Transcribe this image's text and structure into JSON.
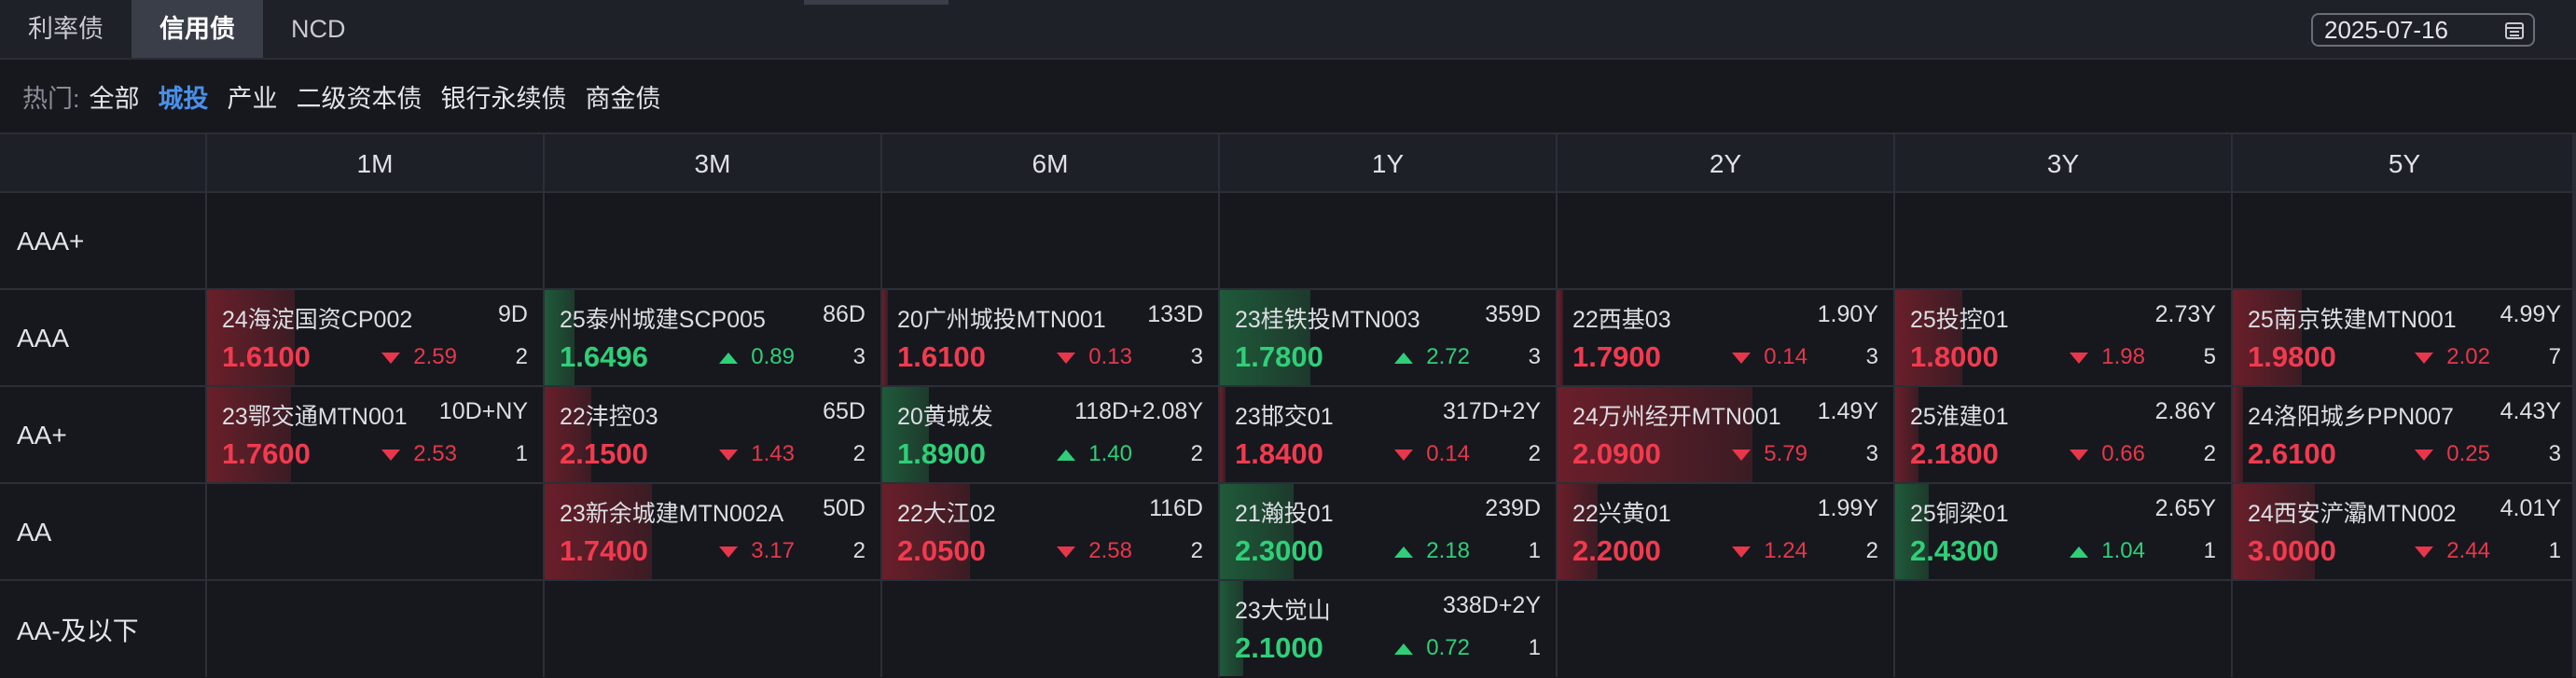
{
  "tabs": [
    {
      "label": "利率债",
      "active": false
    },
    {
      "label": "信用债",
      "active": true
    },
    {
      "label": "NCD",
      "active": false
    }
  ],
  "date": "2025-07-16",
  "hot": {
    "label": "热门:",
    "items": [
      {
        "label": "全部",
        "active": false
      },
      {
        "label": "城投",
        "active": true
      },
      {
        "label": "产业",
        "active": false
      },
      {
        "label": "二级资本债",
        "active": false
      },
      {
        "label": "银行永续债",
        "active": false
      },
      {
        "label": "商金债",
        "active": false
      }
    ]
  },
  "columns": [
    "1M",
    "3M",
    "6M",
    "1Y",
    "2Y",
    "3Y",
    "5Y"
  ],
  "rows": [
    "AAA+",
    "AAA",
    "AA+",
    "AA",
    "AA-及以下"
  ],
  "colors": {
    "up": "#2fcf78",
    "down": "#f23a4f",
    "accent": "#4a90e8"
  },
  "cells": [
    {
      "row": 1,
      "col": 0,
      "name": "24海淀国资CP002",
      "term": "9D",
      "rate": "1.6100",
      "change": "2.59",
      "dir": "down",
      "count": "2",
      "bar": 0.26
    },
    {
      "row": 1,
      "col": 1,
      "name": "25泰州城建SCP005",
      "term": "86D",
      "rate": "1.6496",
      "change": "0.89",
      "dir": "up",
      "count": "3",
      "bar": 0.09
    },
    {
      "row": 1,
      "col": 2,
      "name": "20广州城投MTN001",
      "term": "133D",
      "rate": "1.6100",
      "change": "0.13",
      "dir": "down",
      "count": "3",
      "bar": 0.01
    },
    {
      "row": 1,
      "col": 3,
      "name": "23桂铁投MTN003",
      "term": "359D",
      "rate": "1.7800",
      "change": "2.72",
      "dir": "up",
      "count": "3",
      "bar": 0.27
    },
    {
      "row": 1,
      "col": 4,
      "name": "22西基03",
      "term": "1.90Y",
      "rate": "1.7900",
      "change": "0.14",
      "dir": "down",
      "count": "3",
      "bar": 0.01
    },
    {
      "row": 1,
      "col": 5,
      "name": "25投控01",
      "term": "2.73Y",
      "rate": "1.8000",
      "change": "1.98",
      "dir": "down",
      "count": "5",
      "bar": 0.2
    },
    {
      "row": 1,
      "col": 6,
      "name": "25南京铁建MTN001",
      "term": "4.99Y",
      "rate": "1.9800",
      "change": "2.02",
      "dir": "down",
      "count": "7",
      "bar": 0.2
    },
    {
      "row": 2,
      "col": 0,
      "name": "23鄂交通MTN001",
      "term": "10D+NY",
      "rate": "1.7600",
      "change": "2.53",
      "dir": "down",
      "count": "1",
      "bar": 0.25
    },
    {
      "row": 2,
      "col": 1,
      "name": "22沣控03",
      "term": "65D",
      "rate": "2.1500",
      "change": "1.43",
      "dir": "down",
      "count": "2",
      "bar": 0.14
    },
    {
      "row": 2,
      "col": 2,
      "name": "20黄城发",
      "term": "118D+2.08Y",
      "rate": "1.8900",
      "change": "1.40",
      "dir": "up",
      "count": "2",
      "bar": 0.14
    },
    {
      "row": 2,
      "col": 3,
      "name": "23邯交01",
      "term": "317D+2Y",
      "rate": "1.8400",
      "change": "0.14",
      "dir": "down",
      "count": "2",
      "bar": 0.01
    },
    {
      "row": 2,
      "col": 4,
      "name": "24万州经开MTN001",
      "term": "1.49Y",
      "rate": "2.0900",
      "change": "5.79",
      "dir": "down",
      "count": "3",
      "bar": 0.58
    },
    {
      "row": 2,
      "col": 5,
      "name": "25淮建01",
      "term": "2.86Y",
      "rate": "2.1800",
      "change": "0.66",
      "dir": "down",
      "count": "2",
      "bar": 0.07
    },
    {
      "row": 2,
      "col": 6,
      "name": "24洛阳城乡PPN007",
      "term": "4.43Y",
      "rate": "2.6100",
      "change": "0.25",
      "dir": "down",
      "count": "3",
      "bar": 0.03
    },
    {
      "row": 3,
      "col": 1,
      "name": "23新余城建MTN002A",
      "term": "50D",
      "rate": "1.7400",
      "change": "3.17",
      "dir": "down",
      "count": "2",
      "bar": 0.32
    },
    {
      "row": 3,
      "col": 2,
      "name": "22大江02",
      "term": "116D",
      "rate": "2.0500",
      "change": "2.58",
      "dir": "down",
      "count": "2",
      "bar": 0.26
    },
    {
      "row": 3,
      "col": 3,
      "name": "21瀚投01",
      "term": "239D",
      "rate": "2.3000",
      "change": "2.18",
      "dir": "up",
      "count": "1",
      "bar": 0.22
    },
    {
      "row": 3,
      "col": 4,
      "name": "22兴黄01",
      "term": "1.99Y",
      "rate": "2.2000",
      "change": "1.24",
      "dir": "down",
      "count": "2",
      "bar": 0.12
    },
    {
      "row": 3,
      "col": 5,
      "name": "25铜梁01",
      "term": "2.65Y",
      "rate": "2.4300",
      "change": "1.04",
      "dir": "up",
      "count": "1",
      "bar": 0.1
    },
    {
      "row": 3,
      "col": 6,
      "name": "24西安浐灞MTN002",
      "term": "4.01Y",
      "rate": "3.0000",
      "change": "2.44",
      "dir": "down",
      "count": "1",
      "bar": 0.24
    },
    {
      "row": 4,
      "col": 3,
      "name": "23大觉山",
      "term": "338D+2Y",
      "rate": "2.1000",
      "change": "0.72",
      "dir": "up",
      "count": "1",
      "bar": 0.07
    }
  ]
}
